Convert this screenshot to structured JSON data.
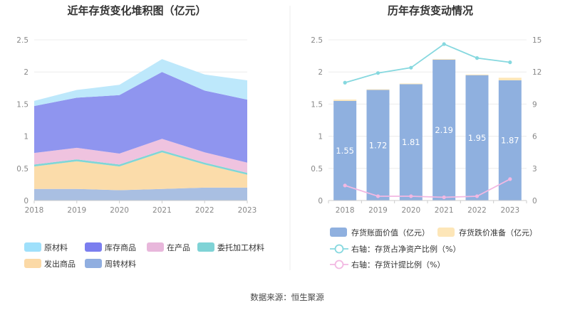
{
  "chart_data": [
    {
      "type": "area",
      "stacked": true,
      "title": "近年存货变化堆积图（亿元）",
      "categories": [
        "2018",
        "2019",
        "2020",
        "2021",
        "2022",
        "2023"
      ],
      "ylim": [
        0,
        2.5
      ],
      "y_ticks": [
        "0",
        "0.5",
        "1",
        "1.5",
        "2",
        "2.5"
      ],
      "grid": true,
      "series": [
        {
          "name": "周转材料",
          "color": "#a9bfe2",
          "values": [
            0.18,
            0.18,
            0.16,
            0.18,
            0.2,
            0.2
          ]
        },
        {
          "name": "发出商品",
          "color": "#fbdcaa",
          "values": [
            0.35,
            0.43,
            0.37,
            0.57,
            0.36,
            0.2
          ]
        },
        {
          "name": "委托加工材料",
          "color": "#7fd6d6",
          "values": [
            0.03,
            0.03,
            0.03,
            0.03,
            0.03,
            0.03
          ]
        },
        {
          "name": "在产品",
          "color": "#efc3df",
          "values": [
            0.18,
            0.18,
            0.17,
            0.18,
            0.16,
            0.16
          ]
        },
        {
          "name": "库存商品",
          "color": "#8f95ef",
          "values": [
            0.73,
            0.78,
            0.91,
            1.04,
            0.96,
            0.98
          ]
        },
        {
          "name": "原材料",
          "color": "#bde8fb",
          "values": [
            0.08,
            0.12,
            0.16,
            0.2,
            0.25,
            0.3
          ]
        }
      ],
      "legend_order": [
        "原材料",
        "库存商品",
        "在产品",
        "委托加工材料",
        "发出商品",
        "周转材料"
      ],
      "legend_colors": {
        "原材料": "#9fe0fb",
        "库存商品": "#7b7eef",
        "在产品": "#e8b7db",
        "委托加工材料": "#7fd3d6",
        "发出商品": "#fbd9a6",
        "周转材料": "#90aee0"
      },
      "legend_position": "bottom"
    },
    {
      "type": "bar",
      "title": "历年存货变动情况",
      "categories": [
        "2018",
        "2019",
        "2020",
        "2021",
        "2022",
        "2023"
      ],
      "ylim": [
        0,
        2.5
      ],
      "y_ticks": [
        "0",
        "0.5",
        "1",
        "1.5",
        "2",
        "2.5"
      ],
      "y2lim": [
        0,
        15
      ],
      "y2_ticks": [
        "0",
        "3",
        "6",
        "9",
        "12",
        "15"
      ],
      "grid": true,
      "series": [
        {
          "name": "存货账面价值（亿元）",
          "kind": "bar",
          "axis": "left",
          "color": "#8fb0df",
          "values": [
            1.55,
            1.72,
            1.81,
            2.19,
            1.95,
            1.87
          ],
          "labels": [
            "1.55",
            "1.72",
            "1.81",
            "2.19",
            "1.95",
            "1.87"
          ]
        },
        {
          "name": "存货跌价准备（亿元）",
          "kind": "bar-stack",
          "axis": "left",
          "color": "#fde6b8",
          "values": [
            0.02,
            0.01,
            0.01,
            0.01,
            0.01,
            0.04
          ]
        },
        {
          "name": "右轴：存货占净资产比例（%）",
          "kind": "line",
          "axis": "right",
          "color": "#86d8df",
          "values": [
            11.0,
            11.9,
            12.4,
            14.6,
            13.3,
            12.9
          ]
        },
        {
          "name": "右轴：存货计提比例（%）",
          "kind": "line",
          "axis": "right",
          "color": "#f2b8e2",
          "values": [
            1.4,
            0.4,
            0.4,
            0.3,
            0.4,
            2.0
          ]
        }
      ],
      "legend_position": "bottom"
    }
  ],
  "source": "数据来源：恒生聚源"
}
